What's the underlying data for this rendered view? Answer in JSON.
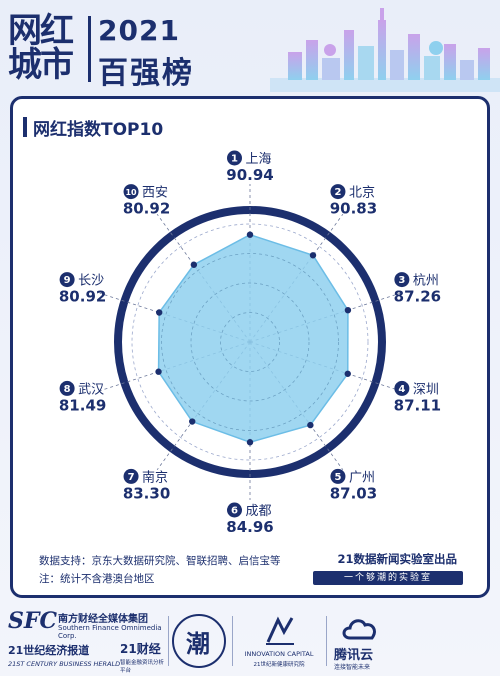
{
  "header": {
    "logo_line1": "网红",
    "logo_line2": "城市",
    "year": "2021",
    "subtitle": "百强榜"
  },
  "card": {
    "title": "网红指数TOP10",
    "source_label": "数据支持：京东大数据研究院、智联招聘、启信宝等",
    "note": "注：统计不含港澳台地区",
    "lab_credit": "21数据新闻实验室出品",
    "lab_slogan": "一个够潮的实验室"
  },
  "chart_data": {
    "type": "radar",
    "title": "网红指数TOP10",
    "categories": [
      "上海",
      "北京",
      "杭州",
      "深圳",
      "广州",
      "成都",
      "南京",
      "武汉",
      "长沙",
      "西安"
    ],
    "ranks": [
      "1",
      "2",
      "3",
      "4",
      "5",
      "6",
      "7",
      "8",
      "9",
      "10"
    ],
    "values": [
      90.94,
      90.83,
      87.26,
      87.11,
      87.03,
      84.96,
      83.3,
      81.49,
      80.92,
      80.92
    ],
    "value_labels": [
      "90.94",
      "90.83",
      "87.26",
      "87.11",
      "87.03",
      "84.96",
      "83.30",
      "81.49",
      "80.92",
      "80.92"
    ],
    "colors": {
      "fill": "#8fd0ee",
      "stroke": "#6cbde6",
      "point": "#1c2f6e",
      "ring": "#1c2f6e",
      "text": "#1c2f6e"
    }
  },
  "footer": {
    "sfc": "SFC",
    "corp_cn": "南方财经全媒体集团",
    "corp_en": "Southern Finance Omnimedia Corp.",
    "herald_cn": "21世纪经济报道",
    "herald_en": "21ST CENTURY BUSINESS HERALD",
    "cj21": "21财经",
    "cj21_sub": "智能金融资讯分析平台",
    "wave_mark": "潮",
    "ic_en": "INNOVATION CAPITAL",
    "ic_cn": "21世纪新健康研究院",
    "cloud_name": "腾讯云",
    "cloud_sub": "连接智能未来"
  }
}
